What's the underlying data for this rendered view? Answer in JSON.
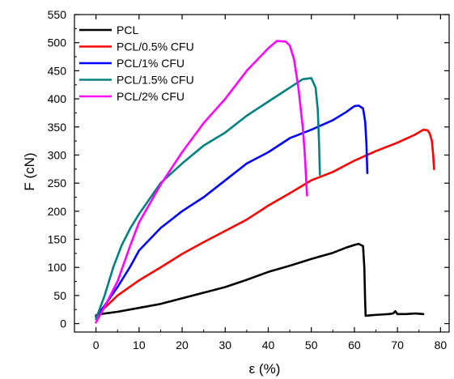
{
  "chart_data": {
    "type": "line",
    "title": "",
    "xlabel": "ε (%)",
    "ylabel": "F (cN)",
    "xlim": [
      -5,
      82
    ],
    "ylim": [
      -15,
      550
    ],
    "xticks": [
      0,
      10,
      20,
      30,
      40,
      50,
      60,
      70,
      80
    ],
    "yticks": [
      0,
      50,
      100,
      150,
      200,
      250,
      300,
      350,
      400,
      450,
      500,
      550
    ],
    "grid": false,
    "legend_position": "top-left",
    "series": [
      {
        "name": "PCL",
        "color": "#000000",
        "points": [
          [
            0,
            15
          ],
          [
            1,
            17
          ],
          [
            3,
            19
          ],
          [
            5,
            21
          ],
          [
            10,
            28
          ],
          [
            15,
            35
          ],
          [
            20,
            45
          ],
          [
            25,
            55
          ],
          [
            30,
            65
          ],
          [
            35,
            78
          ],
          [
            40,
            92
          ],
          [
            45,
            103
          ],
          [
            50,
            115
          ],
          [
            55,
            126
          ],
          [
            58,
            135
          ],
          [
            60,
            140
          ],
          [
            61,
            142
          ],
          [
            61.5,
            140
          ],
          [
            62,
            138
          ],
          [
            62.3,
            100
          ],
          [
            62.5,
            40
          ],
          [
            62.6,
            14
          ],
          [
            64,
            15
          ],
          [
            66,
            16
          ],
          [
            68,
            17
          ],
          [
            69,
            18
          ],
          [
            69.5,
            22
          ],
          [
            70,
            17
          ],
          [
            72,
            17
          ],
          [
            74,
            18
          ],
          [
            76,
            17
          ]
        ]
      },
      {
        "name": "PCL/0.5% CFU",
        "color": "#ff0000",
        "points": [
          [
            0,
            14
          ],
          [
            2,
            28
          ],
          [
            5,
            50
          ],
          [
            10,
            77
          ],
          [
            15,
            100
          ],
          [
            20,
            124
          ],
          [
            25,
            145
          ],
          [
            30,
            165
          ],
          [
            35,
            185
          ],
          [
            40,
            210
          ],
          [
            45,
            232
          ],
          [
            50,
            255
          ],
          [
            55,
            270
          ],
          [
            60,
            290
          ],
          [
            65,
            307
          ],
          [
            70,
            322
          ],
          [
            74,
            336
          ],
          [
            76,
            345
          ],
          [
            77,
            344
          ],
          [
            77.5,
            338
          ],
          [
            78,
            325
          ],
          [
            78.3,
            300
          ],
          [
            78.5,
            275
          ]
        ]
      },
      {
        "name": "PCL/1% CFU",
        "color": "#0000ff",
        "points": [
          [
            0,
            12
          ],
          [
            2,
            32
          ],
          [
            5,
            65
          ],
          [
            8,
            102
          ],
          [
            10,
            130
          ],
          [
            15,
            170
          ],
          [
            20,
            200
          ],
          [
            25,
            225
          ],
          [
            30,
            255
          ],
          [
            35,
            285
          ],
          [
            40,
            305
          ],
          [
            45,
            330
          ],
          [
            50,
            345
          ],
          [
            55,
            362
          ],
          [
            58,
            376
          ],
          [
            60,
            387
          ],
          [
            61,
            388
          ],
          [
            62,
            383
          ],
          [
            62.5,
            360
          ],
          [
            62.8,
            320
          ],
          [
            63,
            268
          ]
        ]
      },
      {
        "name": "PCL/1.5% CFU",
        "color": "#008080",
        "points": [
          [
            0,
            8
          ],
          [
            2,
            50
          ],
          [
            4,
            100
          ],
          [
            6,
            140
          ],
          [
            8,
            170
          ],
          [
            10,
            195
          ],
          [
            15,
            250
          ],
          [
            20,
            285
          ],
          [
            25,
            317
          ],
          [
            30,
            340
          ],
          [
            35,
            370
          ],
          [
            40,
            395
          ],
          [
            45,
            420
          ],
          [
            48,
            435
          ],
          [
            50,
            437
          ],
          [
            51,
            420
          ],
          [
            51.5,
            380
          ],
          [
            51.8,
            320
          ],
          [
            52,
            265
          ]
        ]
      },
      {
        "name": "PCL/2% CFU",
        "color": "#ff00ff",
        "points": [
          [
            0,
            2
          ],
          [
            2,
            30
          ],
          [
            5,
            75
          ],
          [
            8,
            140
          ],
          [
            10,
            180
          ],
          [
            15,
            247
          ],
          [
            20,
            305
          ],
          [
            25,
            357
          ],
          [
            30,
            400
          ],
          [
            35,
            450
          ],
          [
            40,
            490
          ],
          [
            42,
            503
          ],
          [
            44,
            502
          ],
          [
            45,
            495
          ],
          [
            46,
            470
          ],
          [
            47,
            420
          ],
          [
            48,
            350
          ],
          [
            48.5,
            300
          ],
          [
            49,
            228
          ]
        ]
      }
    ]
  }
}
